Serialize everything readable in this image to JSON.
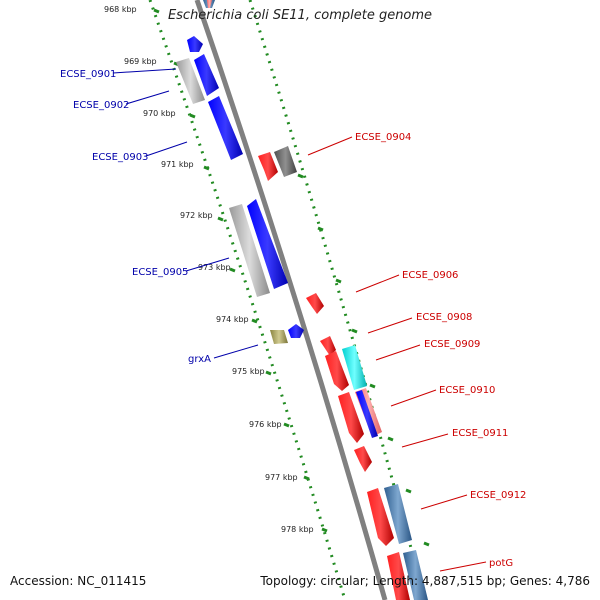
{
  "title": "Escherichia coli SE11, complete genome",
  "footer": {
    "accession": "Accession: NC_011415",
    "summary": "Topology: circular; Length: 4,887,515 bp; Genes: 4,786"
  },
  "colors": {
    "blue_gene": "#0000ee",
    "red_gene": "#ee0000",
    "gray_gene": "#b0b0b0",
    "darkgray_gene": "#606060",
    "cyan_gene": "#00e8e8",
    "steel_gene": "#4a7fb5",
    "olive_gene": "#a09a55",
    "pink_gene": "#f08080",
    "left_label": "#0000aa",
    "right_label": "#cc0000",
    "tick": "#228b22",
    "backbone": "#808080"
  },
  "ticks": [
    "968 kbp",
    "969 kbp",
    "970 kbp",
    "971 kbp",
    "972 kbp",
    "973 kbp",
    "974 kbp",
    "975 kbp",
    "976 kbp",
    "977 kbp",
    "978 kbp"
  ],
  "left_labels": [
    "ECSE_0901",
    "ECSE_0902",
    "ECSE_0903",
    "ECSE_0905",
    "grxA"
  ],
  "right_labels": [
    "ECSE_0904",
    "ECSE_0906",
    "ECSE_0908",
    "ECSE_0909",
    "ECSE_0910",
    "ECSE_0911",
    "ECSE_0912",
    "potG"
  ]
}
